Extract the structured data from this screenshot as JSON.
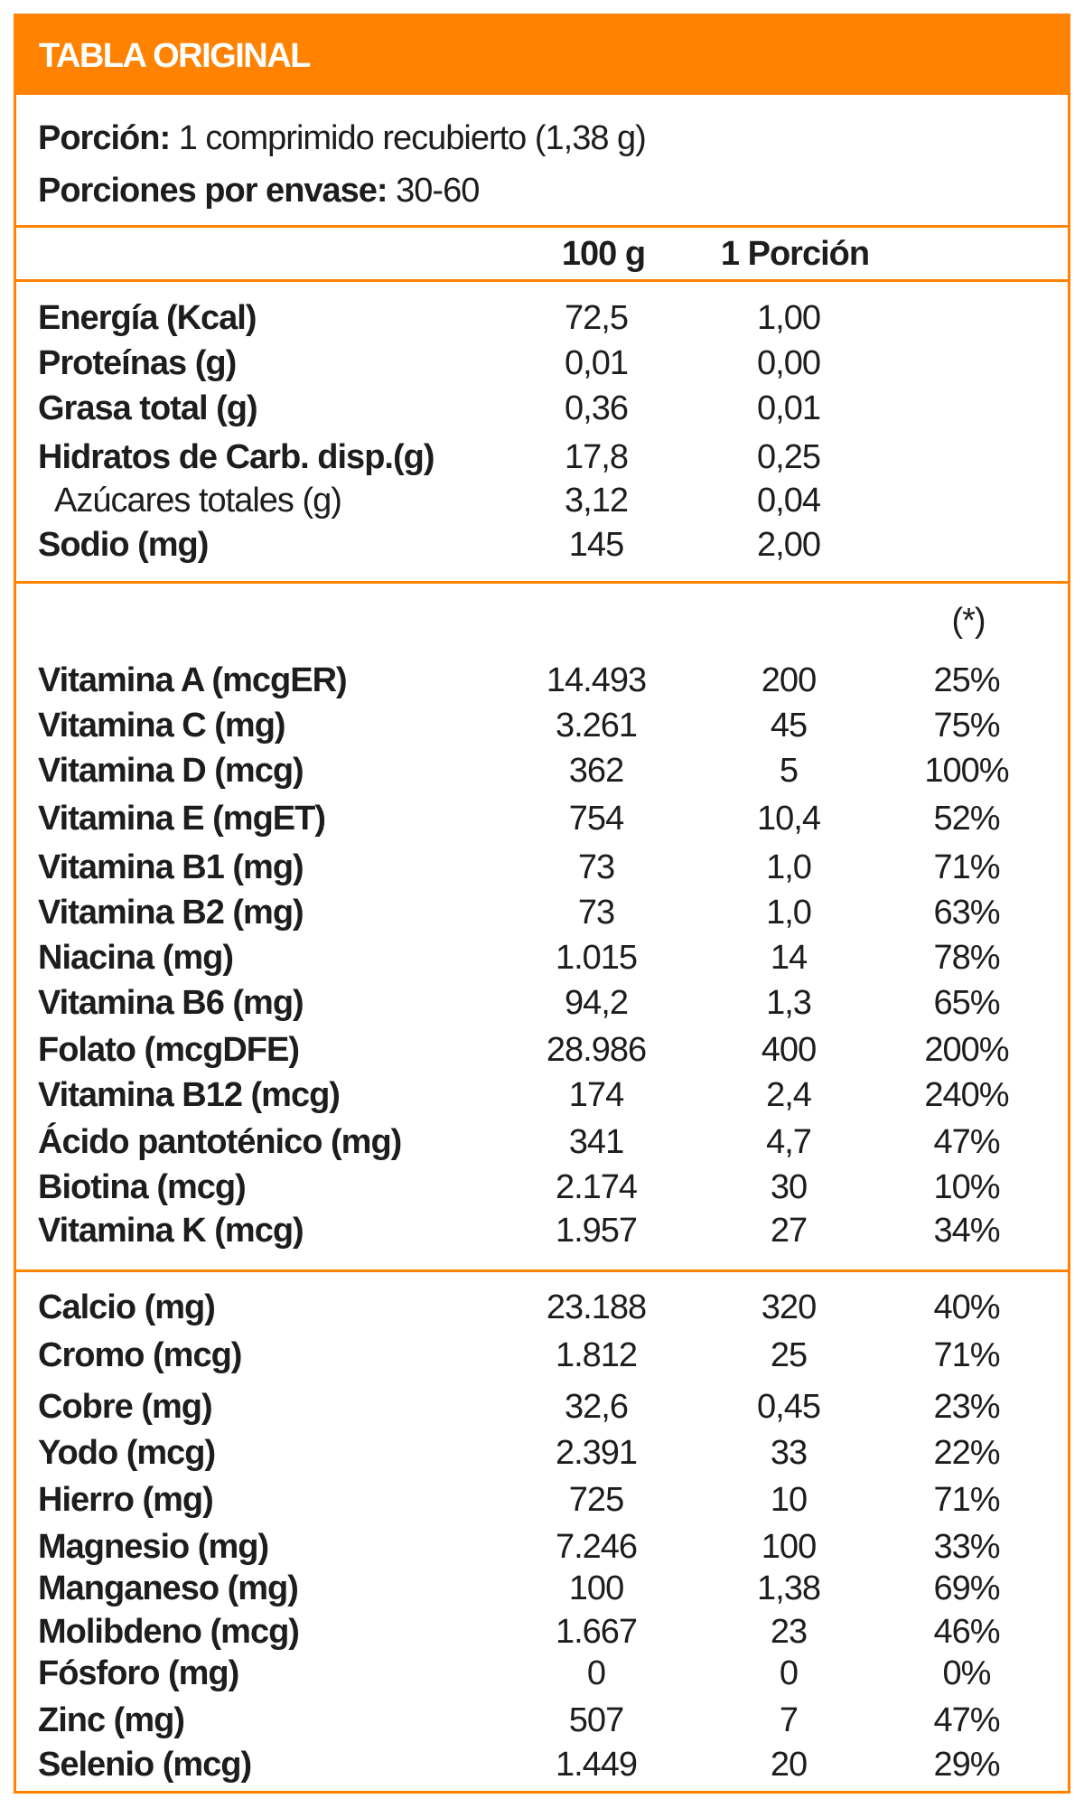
{
  "title": "TABLA ORIGINAL",
  "serving": {
    "label": "Porción:",
    "value": "1 comprimido recubierto (1,38 g)"
  },
  "servings_per_container": {
    "label": "Porciones por envase:",
    "value": "30-60"
  },
  "columns": {
    "per100": "100 g",
    "perServing": "1 Porción",
    "pct": "(*)"
  },
  "colors": {
    "accent": "#ff8200",
    "text": "#1d1d1b"
  },
  "macros": [
    {
      "name": "Energía (Kcal)",
      "per100": "72,5",
      "perServing": "1,00"
    },
    {
      "name": "Proteínas (g)",
      "per100": "0,01",
      "perServing": "0,00"
    },
    {
      "name": "Grasa total (g)",
      "per100": "0,36",
      "perServing": "0,01"
    },
    {
      "name": "Hidratos de Carb. disp.(g)",
      "per100": "17,8",
      "perServing": "0,25"
    },
    {
      "name": "Azúcares totales (g)",
      "per100": "3,12",
      "perServing": "0,04",
      "sub": true
    },
    {
      "name": "Sodio (mg)",
      "per100": "145",
      "perServing": "2,00"
    }
  ],
  "vitamins": [
    {
      "name": "Vitamina A (mcgER)",
      "per100": "14.493",
      "perServing": "200",
      "pct": "25%"
    },
    {
      "name": "Vitamina C (mg)",
      "per100": "3.261",
      "perServing": "45",
      "pct": "75%"
    },
    {
      "name": "Vitamina D (mcg)",
      "per100": "362",
      "perServing": "5",
      "pct": "100%"
    },
    {
      "name": "Vitamina E (mgET)",
      "per100": "754",
      "perServing": "10,4",
      "pct": "52%"
    },
    {
      "name": "Vitamina B1 (mg)",
      "per100": "73",
      "perServing": "1,0",
      "pct": "71%"
    },
    {
      "name": "Vitamina B2 (mg)",
      "per100": "73",
      "perServing": "1,0",
      "pct": "63%"
    },
    {
      "name": "Niacina (mg)",
      "per100": "1.015",
      "perServing": "14",
      "pct": "78%"
    },
    {
      "name": "Vitamina B6 (mg)",
      "per100": "94,2",
      "perServing": "1,3",
      "pct": "65%"
    },
    {
      "name": "Folato (mcgDFE)",
      "per100": "28.986",
      "perServing": "400",
      "pct": "200%"
    },
    {
      "name": "Vitamina B12 (mcg)",
      "per100": "174",
      "perServing": "2,4",
      "pct": "240%"
    },
    {
      "name": "Ácido pantoténico (mg)",
      "per100": "341",
      "perServing": "4,7",
      "pct": "47%"
    },
    {
      "name": "Biotina (mcg)",
      "per100": "2.174",
      "perServing": "30",
      "pct": "10%"
    },
    {
      "name": "Vitamina K (mcg)",
      "per100": "1.957",
      "perServing": "27",
      "pct": "34%"
    }
  ],
  "minerals": [
    {
      "name": "Calcio (mg)",
      "per100": "23.188",
      "perServing": "320",
      "pct": "40%"
    },
    {
      "name": "Cromo (mcg)",
      "per100": "1.812",
      "perServing": "25",
      "pct": "71%"
    },
    {
      "name": "Cobre (mg)",
      "per100": "32,6",
      "perServing": "0,45",
      "pct": "23%"
    },
    {
      "name": "Yodo (mcg)",
      "per100": "2.391",
      "perServing": "33",
      "pct": "22%"
    },
    {
      "name": "Hierro (mg)",
      "per100": "725",
      "perServing": "10",
      "pct": "71%"
    },
    {
      "name": "Magnesio (mg)",
      "per100": "7.246",
      "perServing": "100",
      "pct": "33%"
    },
    {
      "name": "Manganeso (mg)",
      "per100": "100",
      "perServing": "1,38",
      "pct": "69%"
    },
    {
      "name": "Molibdeno (mcg)",
      "per100": "1.667",
      "perServing": "23",
      "pct": "46%"
    },
    {
      "name": "Fósforo (mg)",
      "per100": "0",
      "perServing": "0",
      "pct": "0%"
    },
    {
      "name": "Zinc (mg)",
      "per100": "507",
      "perServing": "7",
      "pct": "47%"
    },
    {
      "name": "Selenio (mcg)",
      "per100": "1.449",
      "perServing": "20",
      "pct": "29%"
    }
  ]
}
